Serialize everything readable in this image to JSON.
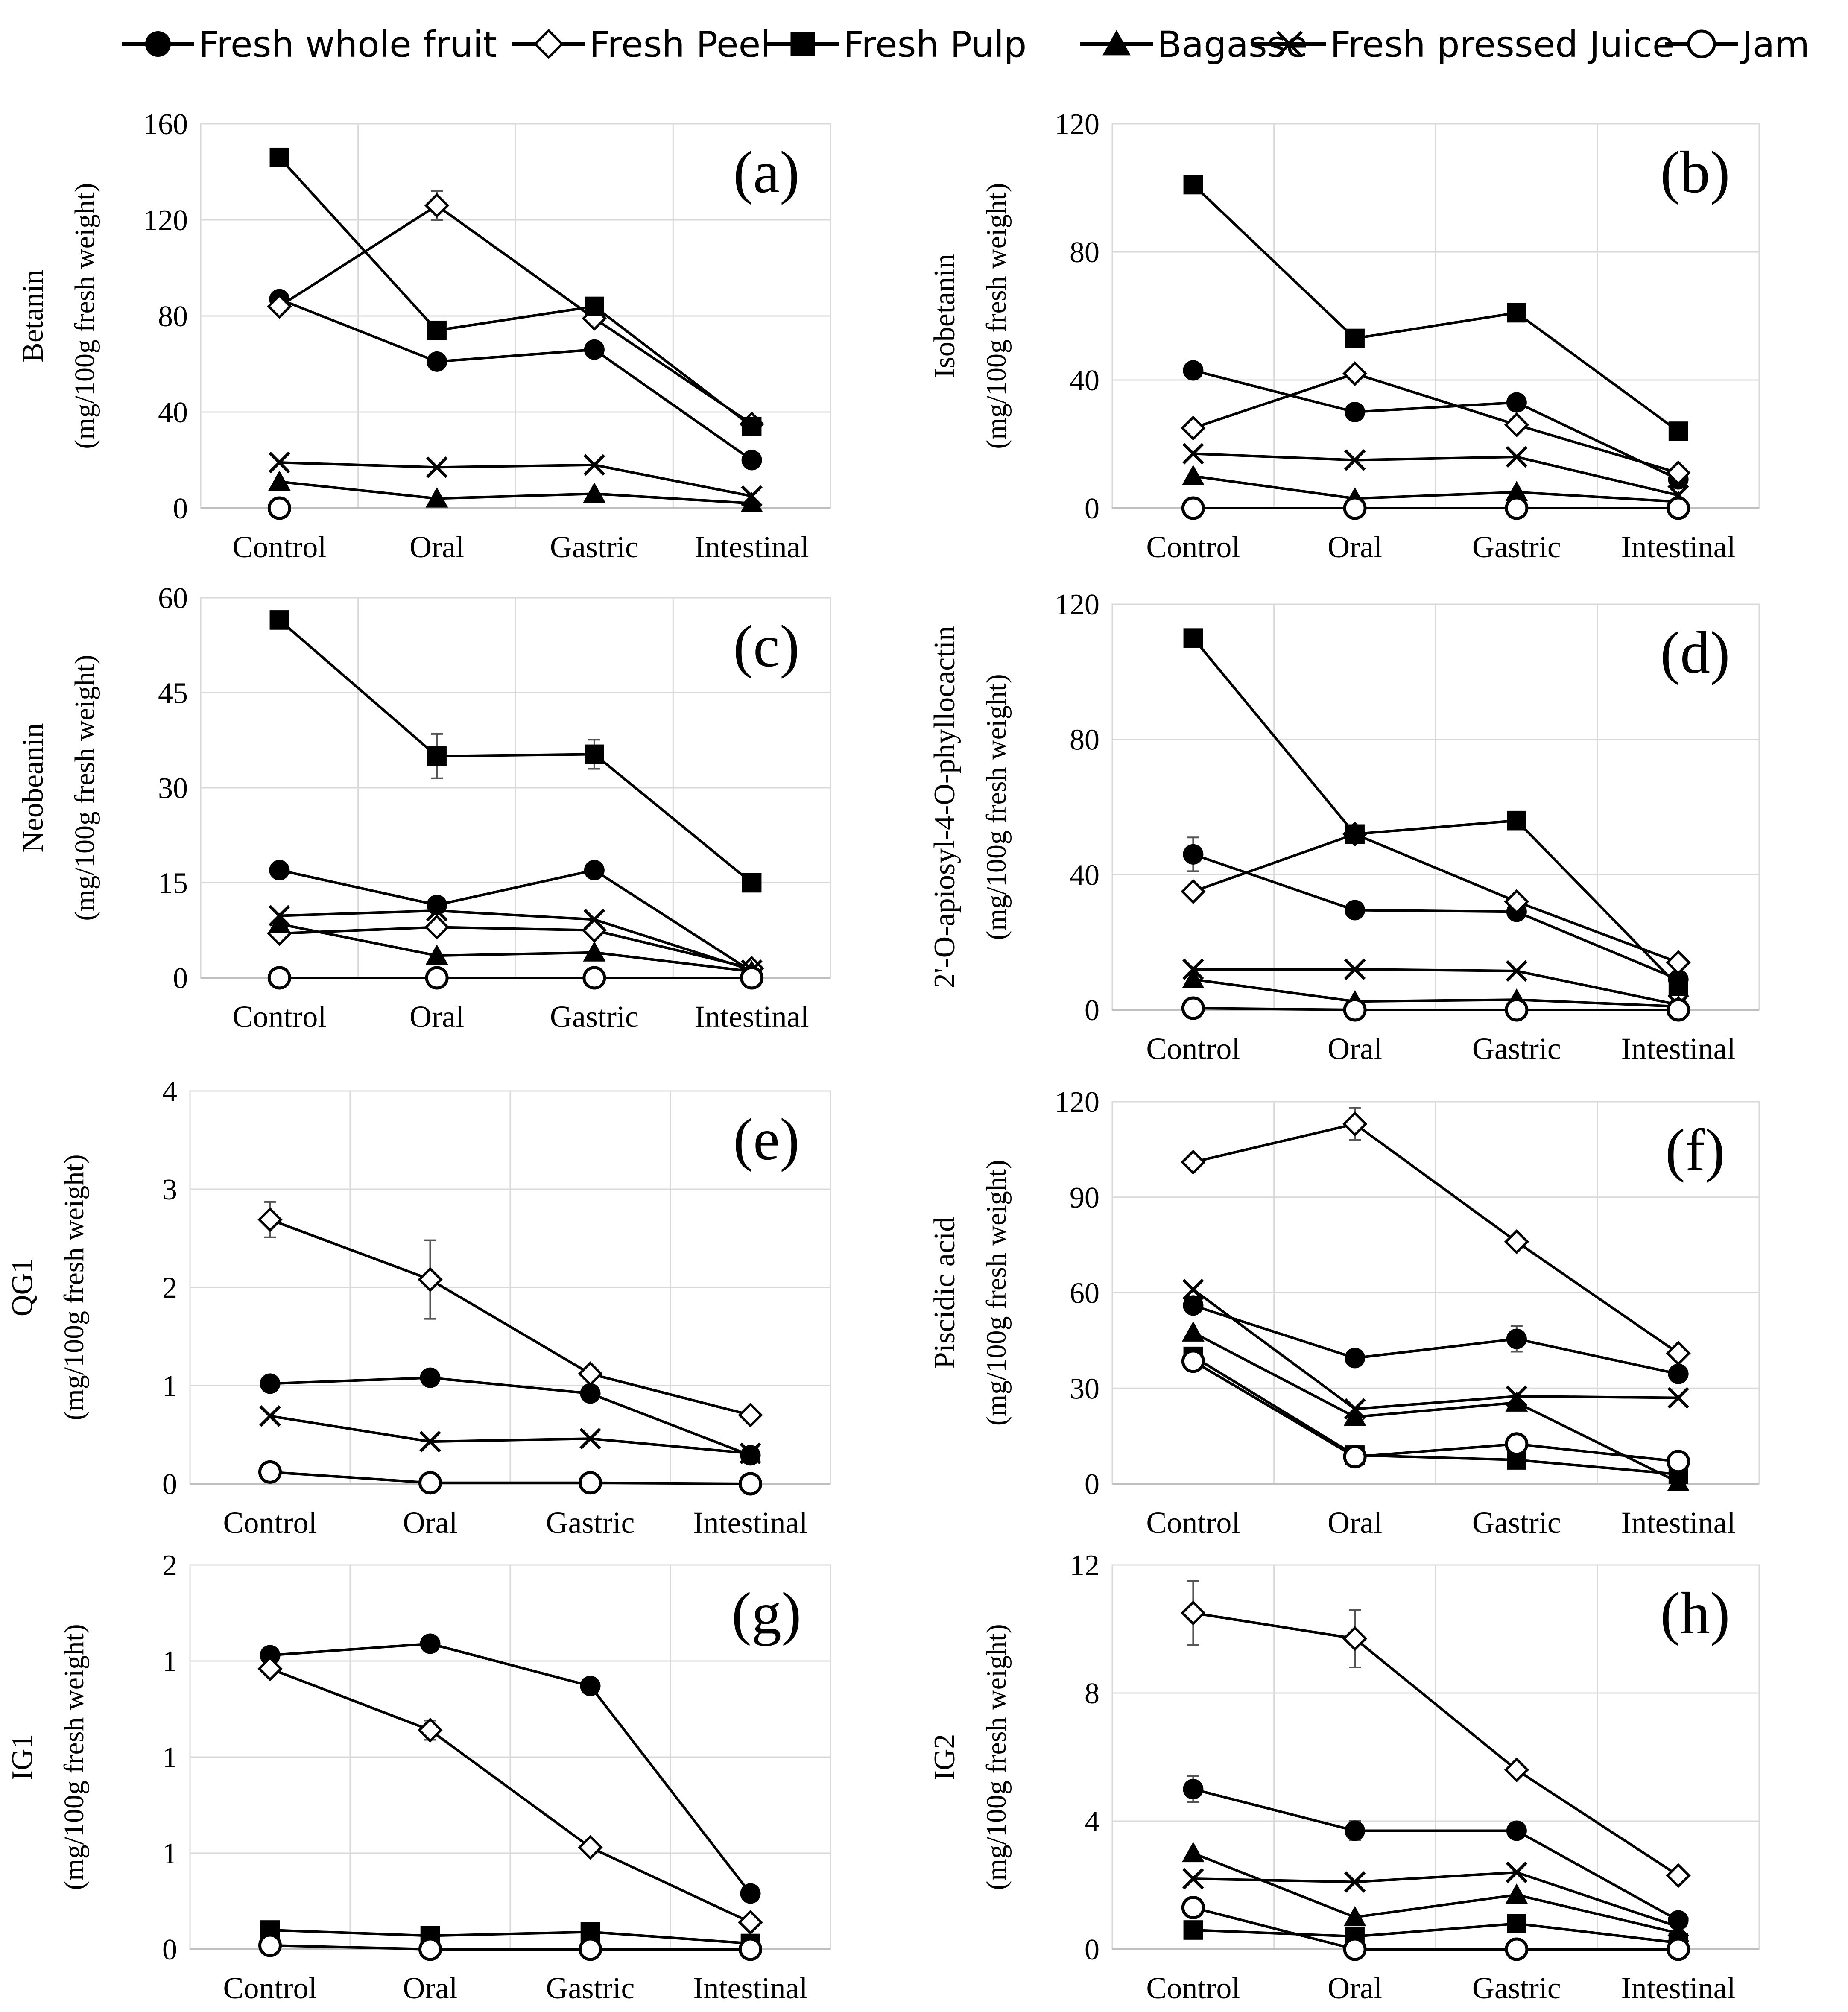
{
  "legend": [
    {
      "name": "Fresh whole fruit",
      "marker": "filled-circle-icon"
    },
    {
      "name": "Fresh Peel",
      "marker": "open-diamond-icon"
    },
    {
      "name": "Fresh Pulp",
      "marker": "filled-square-icon"
    },
    {
      "name": "Bagasse",
      "marker": "filled-triangle-icon"
    },
    {
      "name": "Fresh pressed Juice",
      "marker": "cross-icon"
    },
    {
      "name": "Jam",
      "marker": "open-circle-icon"
    }
  ],
  "colors": {
    "line": "#000000",
    "grid": "#d9d9d9",
    "axis": "#bfbfbf"
  },
  "chart_data": [
    {
      "type": "line",
      "panel": "(a)",
      "ylabel": "Betanin",
      "ylabel2": "(mg/100g fresh weight)",
      "categories": [
        "Control",
        "Oral",
        "Gastric",
        "Intestinal"
      ],
      "ylim": [
        0,
        160
      ],
      "yticks": [
        "0",
        "40",
        "80",
        "120",
        "160"
      ],
      "ytick_values": [
        0,
        40,
        80,
        120,
        160
      ],
      "series": [
        {
          "name": "Fresh whole fruit",
          "values": [
            87,
            61,
            66,
            20
          ]
        },
        {
          "name": "Fresh Peel",
          "values": [
            84,
            126,
            79,
            35
          ],
          "errors": [
            0,
            6,
            0,
            0
          ]
        },
        {
          "name": "Fresh Pulp",
          "values": [
            146,
            74,
            84,
            34
          ]
        },
        {
          "name": "Bagasse",
          "values": [
            11,
            4,
            6,
            2
          ]
        },
        {
          "name": "Fresh pressed Juice",
          "values": [
            19,
            17,
            18,
            5
          ]
        },
        {
          "name": "Jam",
          "values": [
            0,
            null,
            null,
            null
          ]
        }
      ]
    },
    {
      "type": "line",
      "panel": "(b)",
      "ylabel": "Isobetanin",
      "ylabel2": "(mg/100g fresh weight)",
      "categories": [
        "Control",
        "Oral",
        "Gastric",
        "Intestinal"
      ],
      "ylim": [
        0,
        120
      ],
      "yticks": [
        "0",
        "40",
        "80",
        "120"
      ],
      "ytick_values": [
        0,
        40,
        80,
        120
      ],
      "series": [
        {
          "name": "Fresh whole fruit",
          "values": [
            43,
            30,
            33,
            9
          ]
        },
        {
          "name": "Fresh Peel",
          "values": [
            25,
            42,
            26,
            11
          ]
        },
        {
          "name": "Fresh Pulp",
          "values": [
            101,
            53,
            61,
            24
          ]
        },
        {
          "name": "Bagasse",
          "values": [
            10,
            3,
            5,
            2
          ]
        },
        {
          "name": "Fresh pressed Juice",
          "values": [
            17,
            15,
            16,
            4
          ]
        },
        {
          "name": "Jam",
          "values": [
            0,
            0,
            0,
            0
          ]
        }
      ]
    },
    {
      "type": "line",
      "panel": "(c)",
      "ylabel": "Neobeanin",
      "ylabel2": "(mg/100g fresh weight)",
      "categories": [
        "Control",
        "Oral",
        "Gastric",
        "Intestinal"
      ],
      "ylim": [
        0,
        60
      ],
      "yticks": [
        "0",
        "15",
        "30",
        "45",
        "60"
      ],
      "ytick_values": [
        0,
        15,
        30,
        45,
        60
      ],
      "series": [
        {
          "name": "Fresh whole fruit",
          "values": [
            17,
            11.5,
            17,
            1
          ]
        },
        {
          "name": "Fresh Peel",
          "values": [
            7,
            8,
            7.5,
            1.5
          ]
        },
        {
          "name": "Fresh Pulp",
          "values": [
            56.5,
            35,
            35.3,
            15
          ],
          "errors": [
            0,
            3.5,
            2.3,
            0
          ]
        },
        {
          "name": "Bagasse",
          "values": [
            8.5,
            3.5,
            4,
            1
          ]
        },
        {
          "name": "Fresh pressed Juice",
          "values": [
            9.8,
            10.6,
            9.2,
            1.2
          ]
        },
        {
          "name": "Jam",
          "values": [
            0,
            0,
            0,
            0
          ]
        }
      ]
    },
    {
      "type": "line",
      "panel": "(d)",
      "ylabel": "2'-O-apiosyl-4-O-phyllocactin",
      "ylabel2": "(mg/100g fresh weight)",
      "categories": [
        "Control",
        "Oral",
        "Gastric",
        "Intestinal"
      ],
      "ylim": [
        0,
        120
      ],
      "yticks": [
        "0",
        "40",
        "80",
        "120"
      ],
      "ytick_values": [
        0,
        40,
        80,
        120
      ],
      "series": [
        {
          "name": "Fresh whole fruit",
          "values": [
            46,
            29.5,
            29,
            9
          ],
          "errors": [
            5,
            0,
            0,
            0
          ]
        },
        {
          "name": "Fresh Peel",
          "values": [
            35,
            52,
            32,
            14
          ]
        },
        {
          "name": "Fresh Pulp",
          "values": [
            110,
            52,
            56,
            7
          ]
        },
        {
          "name": "Bagasse",
          "values": [
            9,
            2.5,
            3,
            1
          ]
        },
        {
          "name": "Fresh pressed Juice",
          "values": [
            12,
            12,
            11.5,
            1.5
          ]
        },
        {
          "name": "Jam",
          "values": [
            0.5,
            0,
            0,
            0
          ]
        }
      ]
    },
    {
      "type": "line",
      "panel": "(e)",
      "ylabel": "QG1",
      "ylabel2": "(mg/100g fresh weight)",
      "categories": [
        "Control",
        "Oral",
        "Gastric",
        "Intestinal"
      ],
      "ylim": [
        0,
        4
      ],
      "yticks": [
        "0",
        "1",
        "2",
        "3",
        "4"
      ],
      "ytick_values": [
        0,
        1,
        2,
        3,
        4
      ],
      "series": [
        {
          "name": "Fresh whole fruit",
          "values": [
            1.02,
            1.08,
            0.92,
            0.29
          ]
        },
        {
          "name": "Fresh Peel",
          "values": [
            2.69,
            2.08,
            1.12,
            0.7
          ],
          "errors": [
            0.18,
            0.4,
            0,
            0
          ]
        },
        {
          "name": "Fresh Pulp",
          "values": [
            null,
            null,
            null,
            null
          ]
        },
        {
          "name": "Bagasse",
          "values": [
            null,
            null,
            null,
            null
          ]
        },
        {
          "name": "Fresh pressed Juice",
          "values": [
            0.69,
            0.43,
            0.46,
            0.31
          ]
        },
        {
          "name": "Jam",
          "values": [
            0.12,
            0.01,
            0.01,
            0.0
          ]
        }
      ]
    },
    {
      "type": "line",
      "panel": "(f)",
      "ylabel": "Piscidic acid",
      "ylabel2": "(mg/100g fresh weight)",
      "categories": [
        "Control",
        "Oral",
        "Gastric",
        "Intestinal"
      ],
      "ylim": [
        0,
        120
      ],
      "yticks": [
        "0",
        "30",
        "60",
        "90",
        "120"
      ],
      "ytick_values": [
        0,
        30,
        60,
        90,
        120
      ],
      "series": [
        {
          "name": "Fresh whole fruit",
          "values": [
            56,
            39.5,
            45.5,
            34.5
          ],
          "errors": [
            0,
            0,
            4,
            0
          ]
        },
        {
          "name": "Fresh Peel",
          "values": [
            101,
            113,
            76,
            41
          ],
          "errors": [
            0,
            5,
            0,
            0
          ]
        },
        {
          "name": "Fresh Pulp",
          "values": [
            40,
            9,
            7.5,
            3
          ]
        },
        {
          "name": "Bagasse",
          "values": [
            47.5,
            21,
            25.5,
            0.5
          ]
        },
        {
          "name": "Fresh pressed Juice",
          "values": [
            61,
            23.5,
            27.5,
            27
          ]
        },
        {
          "name": "Jam",
          "values": [
            38.5,
            8.5,
            12.5,
            7
          ]
        }
      ]
    },
    {
      "type": "line",
      "panel": "(g)",
      "ylabel": "IG1",
      "ylabel2": "(mg/100g fresh weight)",
      "categories": [
        "Control",
        "Oral",
        "Gastric",
        "Intestinal"
      ],
      "ylim": [
        0,
        2
      ],
      "yticks": [
        "0",
        "1",
        "1",
        "1",
        "2"
      ],
      "ytick_values": [
        0,
        0.5,
        1,
        1.5,
        2
      ],
      "series": [
        {
          "name": "Fresh whole fruit",
          "values": [
            1.53,
            1.59,
            1.37,
            0.29
          ]
        },
        {
          "name": "Fresh Peel",
          "values": [
            1.46,
            1.14,
            0.53,
            0.14
          ],
          "errors": [
            0.03,
            0.05,
            0,
            0
          ]
        },
        {
          "name": "Fresh Pulp",
          "values": [
            0.1,
            0.07,
            0.09,
            0.03
          ]
        },
        {
          "name": "Bagasse",
          "values": [
            null,
            null,
            null,
            null
          ]
        },
        {
          "name": "Fresh pressed Juice",
          "values": [
            null,
            null,
            null,
            null
          ]
        },
        {
          "name": "Jam",
          "values": [
            0.02,
            0,
            0,
            0
          ]
        }
      ]
    },
    {
      "type": "line",
      "panel": "(h)",
      "ylabel": "IG2",
      "ylabel2": "(mg/100g fresh weight)",
      "categories": [
        "Control",
        "Oral",
        "Gastric",
        "Intestinal"
      ],
      "ylim": [
        0,
        12
      ],
      "yticks": [
        "0",
        "4",
        "8",
        "12"
      ],
      "ytick_values": [
        0,
        4,
        8,
        12
      ],
      "series": [
        {
          "name": "Fresh whole fruit",
          "values": [
            5,
            3.7,
            3.7,
            0.9
          ],
          "errors": [
            0.4,
            0.3,
            0,
            0
          ]
        },
        {
          "name": "Fresh Peel",
          "values": [
            10.5,
            9.7,
            5.6,
            2.3
          ],
          "errors": [
            1.0,
            0.9,
            0,
            0
          ]
        },
        {
          "name": "Fresh Pulp",
          "values": [
            0.6,
            0.4,
            0.8,
            0.2
          ]
        },
        {
          "name": "Bagasse",
          "values": [
            3,
            1,
            1.7,
            0.5
          ]
        },
        {
          "name": "Fresh pressed Juice",
          "values": [
            2.2,
            2.1,
            2.4,
            0.7
          ]
        },
        {
          "name": "Jam",
          "values": [
            1.3,
            0,
            0,
            0
          ]
        }
      ]
    }
  ]
}
